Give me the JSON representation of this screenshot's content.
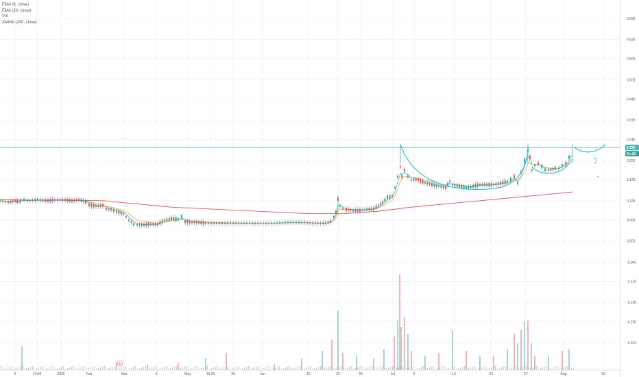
{
  "legend": {
    "ema8": "EMA (8, close)",
    "ema20": "EMA (20, close)",
    "vol": "Vol",
    "smma": "SMMA (200, close)"
  },
  "colors": {
    "up": "#26a69a",
    "down": "#ef5350",
    "ema8": "#26c6da",
    "ema20": "#f5a623",
    "smma": "#ef5350",
    "drawing": "#26c6da",
    "hline": "#4db6ac",
    "grid": "#f0f3fa"
  },
  "chart_data": {
    "type": "candlestick",
    "x_ticks": [
      "2",
      "14:00",
      "2020",
      "Feb",
      "Mar",
      "6",
      "May",
      "13:00",
      "25",
      "Jun",
      "15",
      "22",
      "25",
      "Jul",
      "6",
      "13",
      "20",
      "27",
      "Aug",
      "10"
    ],
    "y_ticks": [
      "0.690",
      "0.625",
      "0.565",
      "0.500",
      "0.440",
      "0.375",
      "0.315",
      "0.250",
      "0.190",
      "0.125",
      "0.065",
      "0.000",
      "-0.065",
      "-0.125",
      "-0.190",
      "-0.250",
      "-0.315"
    ],
    "ylim": [
      -0.4,
      0.73
    ],
    "last_price": "0.290",
    "countdown": "2h:18",
    "earnings_marker": "E",
    "price_path": [
      [
        0,
        0.125
      ],
      [
        12,
        0.12
      ],
      [
        22,
        0.125
      ],
      [
        28,
        0.122
      ],
      [
        30,
        0.125
      ],
      [
        35,
        0.128
      ],
      [
        40,
        0.125
      ],
      [
        55,
        0.128
      ],
      [
        70,
        0.125
      ],
      [
        80,
        0.128
      ],
      [
        95,
        0.128
      ],
      [
        105,
        0.125
      ],
      [
        115,
        0.128
      ],
      [
        125,
        0.122
      ],
      [
        130,
        0.112
      ],
      [
        140,
        0.108
      ],
      [
        150,
        0.11
      ],
      [
        155,
        0.1
      ],
      [
        162,
        0.098
      ],
      [
        170,
        0.092
      ],
      [
        180,
        0.085
      ],
      [
        188,
        0.065
      ],
      [
        195,
        0.052
      ],
      [
        200,
        0.05
      ],
      [
        210,
        0.05
      ],
      [
        220,
        0.052
      ],
      [
        230,
        0.052
      ],
      [
        240,
        0.065
      ],
      [
        250,
        0.07
      ],
      [
        260,
        0.068
      ],
      [
        265,
        0.075
      ],
      [
        270,
        0.06
      ],
      [
        280,
        0.058
      ],
      [
        290,
        0.058
      ],
      [
        300,
        0.055
      ],
      [
        320,
        0.055
      ],
      [
        340,
        0.055
      ],
      [
        360,
        0.055
      ],
      [
        380,
        0.055
      ],
      [
        400,
        0.055
      ],
      [
        420,
        0.058
      ],
      [
        440,
        0.058
      ],
      [
        460,
        0.055
      ],
      [
        475,
        0.055
      ],
      [
        482,
        0.06
      ],
      [
        487,
        0.075
      ],
      [
        490,
        0.09
      ],
      [
        493,
        0.13
      ],
      [
        496,
        0.11
      ],
      [
        500,
        0.1
      ],
      [
        505,
        0.098
      ],
      [
        515,
        0.095
      ],
      [
        525,
        0.095
      ],
      [
        535,
        0.098
      ],
      [
        545,
        0.1
      ],
      [
        552,
        0.11
      ],
      [
        558,
        0.12
      ],
      [
        565,
        0.135
      ],
      [
        572,
        0.14
      ],
      [
        576,
        0.165
      ],
      [
        580,
        0.2
      ],
      [
        584,
        0.23
      ],
      [
        586,
        0.2
      ],
      [
        590,
        0.22
      ],
      [
        595,
        0.2
      ],
      [
        600,
        0.19
      ],
      [
        610,
        0.19
      ],
      [
        620,
        0.18
      ],
      [
        630,
        0.175
      ],
      [
        640,
        0.17
      ],
      [
        650,
        0.165
      ],
      [
        656,
        0.185
      ],
      [
        660,
        0.175
      ],
      [
        670,
        0.17
      ],
      [
        680,
        0.165
      ],
      [
        690,
        0.17
      ],
      [
        700,
        0.175
      ],
      [
        710,
        0.175
      ],
      [
        720,
        0.175
      ],
      [
        730,
        0.18
      ],
      [
        740,
        0.185
      ],
      [
        745,
        0.19
      ],
      [
        750,
        0.2
      ],
      [
        755,
        0.18
      ],
      [
        760,
        0.215
      ],
      [
        765,
        0.25
      ],
      [
        770,
        0.28
      ],
      [
        773,
        0.26
      ],
      [
        776,
        0.22
      ],
      [
        780,
        0.235
      ],
      [
        785,
        0.24
      ],
      [
        790,
        0.23
      ],
      [
        795,
        0.22
      ],
      [
        800,
        0.22
      ],
      [
        810,
        0.225
      ],
      [
        815,
        0.225
      ],
      [
        820,
        0.235
      ],
      [
        825,
        0.24
      ],
      [
        830,
        0.26
      ],
      [
        835,
        0.28
      ]
    ],
    "smma_path": [
      [
        0,
        0.128
      ],
      [
        150,
        0.125
      ],
      [
        250,
        0.105
      ],
      [
        350,
        0.095
      ],
      [
        450,
        0.085
      ],
      [
        500,
        0.085
      ],
      [
        550,
        0.092
      ],
      [
        600,
        0.105
      ],
      [
        650,
        0.115
      ],
      [
        700,
        0.125
      ],
      [
        750,
        0.135
      ],
      [
        800,
        0.145
      ],
      [
        835,
        0.152
      ]
    ],
    "volume_spikes": [
      [
        32,
        0.25
      ],
      [
        170,
        0.08
      ],
      [
        215,
        0.06
      ],
      [
        260,
        0.08
      ],
      [
        300,
        0.12
      ],
      [
        330,
        0.18
      ],
      [
        400,
        0.06
      ],
      [
        440,
        0.12
      ],
      [
        470,
        0.2
      ],
      [
        484,
        0.32
      ],
      [
        493,
        0.62
      ],
      [
        500,
        0.18
      ],
      [
        520,
        0.15
      ],
      [
        545,
        0.12
      ],
      [
        560,
        0.22
      ],
      [
        575,
        0.35
      ],
      [
        580,
        0.52
      ],
      [
        583,
        1.0
      ],
      [
        585,
        0.45
      ],
      [
        590,
        0.55
      ],
      [
        595,
        0.38
      ],
      [
        600,
        0.2
      ],
      [
        620,
        0.15
      ],
      [
        640,
        0.18
      ],
      [
        660,
        0.42
      ],
      [
        680,
        0.2
      ],
      [
        700,
        0.15
      ],
      [
        720,
        0.15
      ],
      [
        740,
        0.22
      ],
      [
        750,
        0.38
      ],
      [
        755,
        0.28
      ],
      [
        760,
        0.42
      ],
      [
        765,
        0.5
      ],
      [
        770,
        0.52
      ],
      [
        775,
        0.28
      ],
      [
        780,
        0.15
      ],
      [
        800,
        0.15
      ],
      [
        820,
        0.2
      ],
      [
        830,
        0.22
      ]
    ]
  }
}
